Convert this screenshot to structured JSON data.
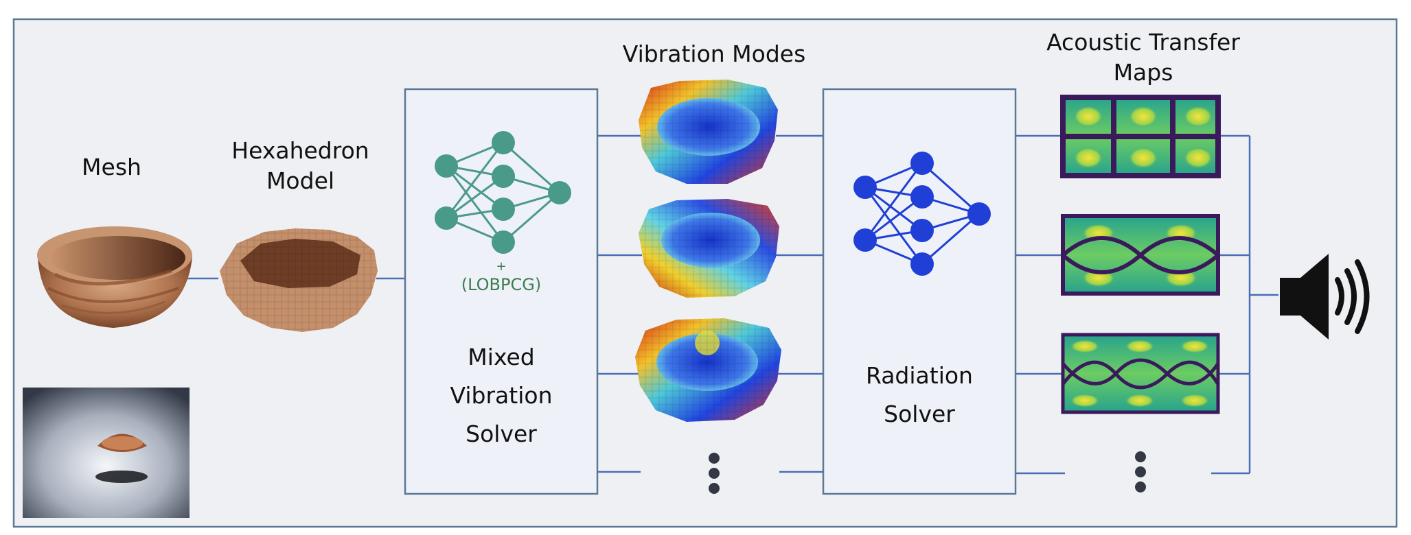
{
  "labels": {
    "mesh": "Mesh",
    "hexahedron_line1": "Hexahedron",
    "hexahedron_line2": "Model",
    "vibration_modes": "Vibration Modes",
    "acoustic_line1": "Acoustic Transfer",
    "acoustic_line2": "Maps",
    "plus": "+",
    "lobpcg": "(LOBPCG)",
    "mixed_line1": "Mixed",
    "mixed_line2": "Vibration",
    "mixed_line3": "Solver",
    "radiation_line1": "Radiation",
    "radiation_line2": "Solver"
  },
  "icons": [
    "neural-network-icon",
    "speaker-icon",
    "vertical-ellipsis-icon"
  ],
  "colors": {
    "panel_bg": "#eef0f4",
    "panel_border": "#5b7896",
    "box_bg": "#eef1f8",
    "box_border": "#5b7896",
    "connector": "#4b6cb7",
    "nn_green": "#4a9a8a",
    "nn_blue": "#1f3fd6",
    "lobpcg_text": "#3e7d4f",
    "speaker": "#111111",
    "dots": "#333844"
  }
}
